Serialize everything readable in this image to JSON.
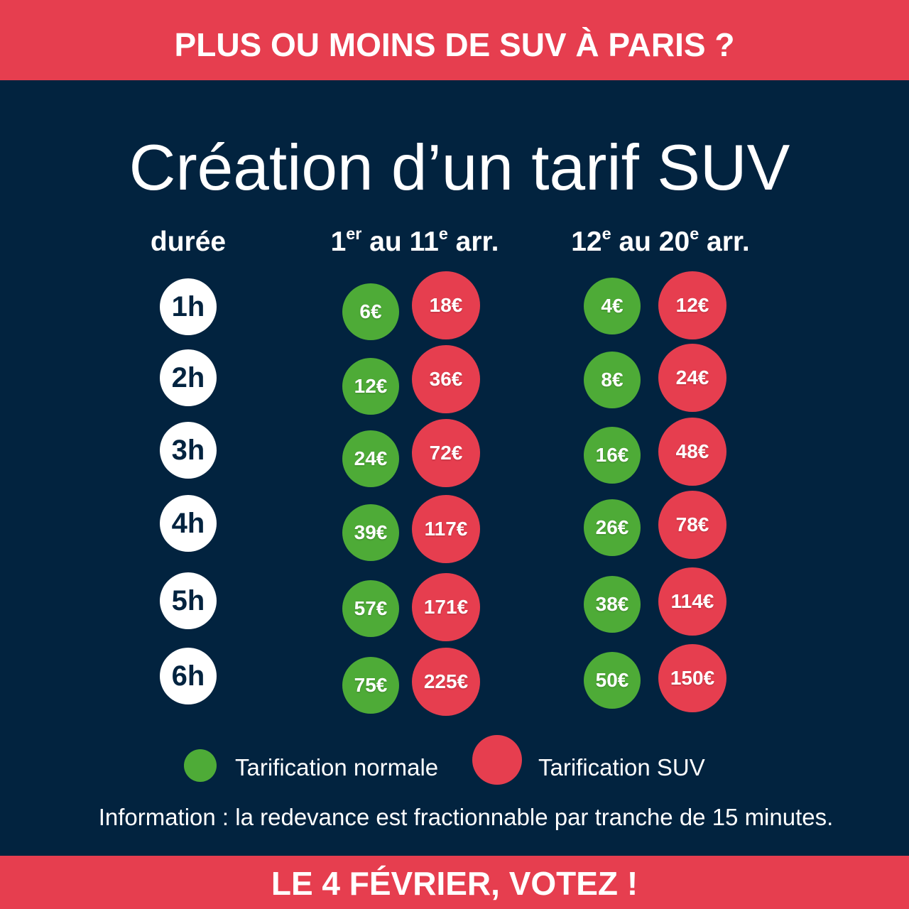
{
  "colors": {
    "banner_red": "#E63E4F",
    "background_navy": "#02233F",
    "normal_green": "#4EAB37",
    "suv_red": "#E63E4F",
    "duration_circle": "#FFFFFF"
  },
  "header_banner": {
    "text": "PLUS OU MOINS DE SUV À PARIS ?"
  },
  "footer_banner": {
    "text": "LE 4 FÉVRIER, VOTEZ !"
  },
  "chart_data": {
    "type": "table",
    "title": "Création d’un tarif SUV",
    "row_header": "durée",
    "rows": [
      "1h",
      "2h",
      "3h",
      "4h",
      "5h",
      "6h"
    ],
    "unit": "€",
    "series": [
      {
        "name": "Tarification normale",
        "color": "#4EAB37"
      },
      {
        "name": "Tarification SUV",
        "color": "#E63E4F"
      }
    ],
    "groups": [
      {
        "label": [
          {
            "text": "1"
          },
          {
            "text": "er",
            "sup": true
          },
          {
            "text": " au 11"
          },
          {
            "text": "e",
            "sup": true
          },
          {
            "text": " arr."
          }
        ],
        "values": [
          [
            6,
            12,
            24,
            39,
            57,
            75
          ],
          [
            18,
            36,
            72,
            117,
            171,
            225
          ]
        ]
      },
      {
        "label": [
          {
            "text": "12"
          },
          {
            "text": "e",
            "sup": true
          },
          {
            "text": " au 20"
          },
          {
            "text": "e",
            "sup": true
          },
          {
            "text": " arr."
          }
        ],
        "values": [
          [
            4,
            8,
            16,
            26,
            38,
            50
          ],
          [
            12,
            24,
            48,
            78,
            114,
            150
          ]
        ]
      }
    ],
    "note": "Information : la redevance est fractionnable par tranche de 15 minutes."
  }
}
